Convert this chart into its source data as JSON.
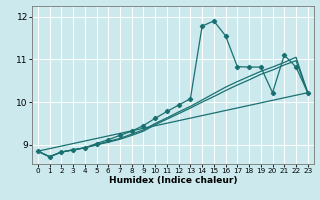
{
  "title": "",
  "xlabel": "Humidex (Indice chaleur)",
  "xlim": [
    -0.5,
    23.5
  ],
  "ylim": [
    8.55,
    12.25
  ],
  "yticks": [
    9,
    10,
    11,
    12
  ],
  "xticks": [
    0,
    1,
    2,
    3,
    4,
    5,
    6,
    7,
    8,
    9,
    10,
    11,
    12,
    13,
    14,
    15,
    16,
    17,
    18,
    19,
    20,
    21,
    22,
    23
  ],
  "bg_color": "#cce9ee",
  "line_color": "#1a7070",
  "grid_color": "#ffffff",
  "lines": [
    {
      "x": [
        0,
        1,
        2,
        3,
        4,
        5,
        6,
        7,
        8,
        9,
        10,
        11,
        12,
        13,
        14,
        15,
        16,
        17,
        18,
        19,
        20,
        21,
        22,
        23
      ],
      "y": [
        8.85,
        8.72,
        8.83,
        8.88,
        8.93,
        9.03,
        9.12,
        9.22,
        9.32,
        9.45,
        9.62,
        9.78,
        9.93,
        10.08,
        11.78,
        11.9,
        11.55,
        10.83,
        10.82,
        10.82,
        10.22,
        11.1,
        10.82,
        10.22
      ],
      "marker": "D",
      "markersize": 2.2,
      "linewidth": 0.9
    },
    {
      "x": [
        0,
        1,
        2,
        3,
        4,
        5,
        6,
        7,
        8,
        9,
        10,
        11,
        12,
        13,
        14,
        15,
        16,
        17,
        18,
        19,
        20,
        21,
        22,
        23
      ],
      "y": [
        8.85,
        8.72,
        8.83,
        8.88,
        8.93,
        9.0,
        9.08,
        9.15,
        9.25,
        9.35,
        9.5,
        9.63,
        9.77,
        9.9,
        10.05,
        10.2,
        10.35,
        10.48,
        10.6,
        10.72,
        10.82,
        10.93,
        11.05,
        10.22
      ],
      "marker": null,
      "markersize": 0,
      "linewidth": 0.9
    },
    {
      "x": [
        0,
        1,
        2,
        3,
        4,
        5,
        6,
        7,
        8,
        9,
        10,
        11,
        12,
        13,
        14,
        15,
        16,
        17,
        18,
        19,
        20,
        21,
        22,
        23
      ],
      "y": [
        8.85,
        8.72,
        8.83,
        8.88,
        8.93,
        9.0,
        9.06,
        9.13,
        9.22,
        9.32,
        9.47,
        9.6,
        9.73,
        9.86,
        10.0,
        10.13,
        10.27,
        10.4,
        10.52,
        10.65,
        10.75,
        10.87,
        10.97,
        10.22
      ],
      "marker": null,
      "markersize": 0,
      "linewidth": 0.9
    },
    {
      "x": [
        0,
        23
      ],
      "y": [
        8.85,
        10.22
      ],
      "marker": null,
      "markersize": 0,
      "linewidth": 0.9
    }
  ]
}
